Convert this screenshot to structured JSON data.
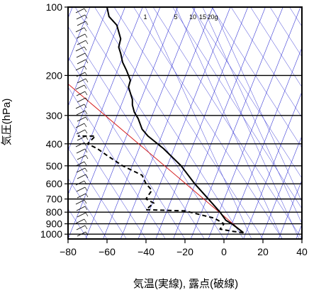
{
  "chart_data": {
    "type": "line",
    "title": "",
    "xlabel": "気温(実線), 露点(破線)",
    "ylabel": "気圧(hPa)",
    "x_ticks": [
      -80,
      -60,
      -40,
      -20,
      0,
      20,
      40
    ],
    "y_ticks": [
      100,
      200,
      300,
      400,
      500,
      600,
      700,
      800,
      900,
      1000
    ],
    "xlim": [
      -80,
      40
    ],
    "ylim": [
      1050,
      100
    ],
    "y_scale": "log",
    "grid": true,
    "mixing_ratio_labels": [
      {
        "text": "1",
        "value": 1
      },
      {
        "text": "5",
        "value": 5
      },
      {
        "text": "10",
        "value": 10
      },
      {
        "text": "15",
        "value": 15
      },
      {
        "text": "20g",
        "value": 20
      }
    ],
    "series": [
      {
        "role": "temperature",
        "style": "solid",
        "color": "#000000",
        "points": [
          [
            10,
            985
          ],
          [
            4,
            900
          ],
          [
            1,
            870
          ],
          [
            -2,
            800
          ],
          [
            -8,
            700
          ],
          [
            -15,
            600
          ],
          [
            -22,
            500
          ],
          [
            -31,
            420
          ],
          [
            -39,
            370
          ],
          [
            -42,
            345
          ],
          [
            -44,
            310
          ],
          [
            -46,
            290
          ],
          [
            -47,
            270
          ],
          [
            -47,
            255
          ],
          [
            -49,
            225
          ],
          [
            -48,
            210
          ],
          [
            -50,
            190
          ],
          [
            -52,
            175
          ],
          [
            -53,
            160
          ],
          [
            -54,
            150
          ],
          [
            -53,
            138
          ],
          [
            -55,
            120
          ],
          [
            -59,
            110
          ],
          [
            -60,
            100
          ]
        ]
      },
      {
        "role": "dewpoint",
        "style": "dashed",
        "color": "#000000",
        "points": [
          [
            10,
            985
          ],
          [
            4,
            970
          ],
          [
            -2,
            950
          ],
          [
            0,
            900
          ],
          [
            -5,
            850
          ],
          [
            -20,
            790
          ],
          [
            -40,
            780
          ],
          [
            -36,
            730
          ],
          [
            -40,
            700
          ],
          [
            -37,
            640
          ],
          [
            -40,
            600
          ],
          [
            -42,
            550
          ],
          [
            -52,
            500
          ],
          [
            -60,
            450
          ],
          [
            -65,
            420
          ],
          [
            -70,
            400
          ],
          [
            -66,
            370
          ],
          [
            -75,
            370
          ]
        ]
      },
      {
        "role": "reference",
        "style": "solid",
        "color": "#d62020",
        "points": [
          [
            10,
            985
          ],
          [
            -80,
            218
          ]
        ]
      }
    ]
  }
}
